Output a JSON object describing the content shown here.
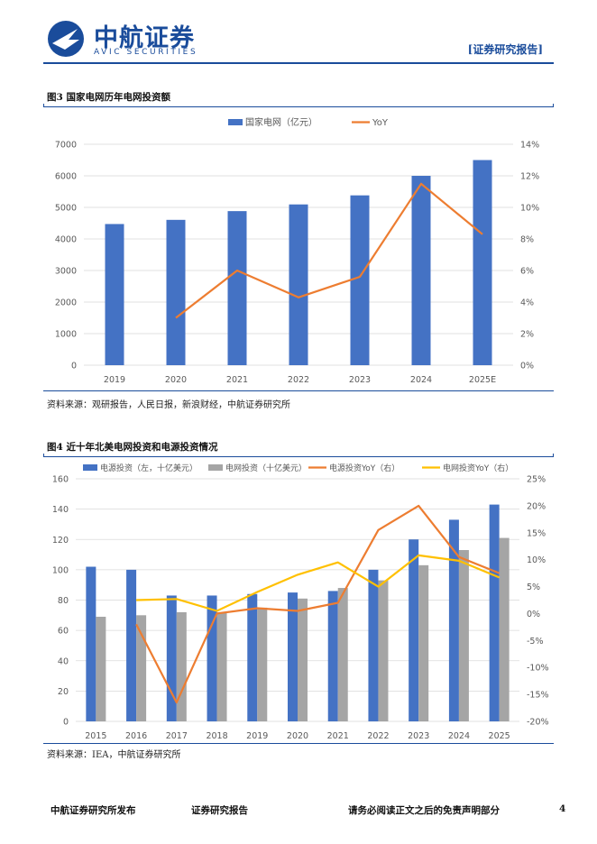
{
  "header": {
    "brand_cn": "中航证券",
    "brand_en": "AVIC  SECURITIES",
    "logo_text": "AVIC",
    "report_tag": "[证券研究报告]"
  },
  "figure3": {
    "title": "图3 国家电网历年电网投资额",
    "source": "资料来源：观研报告，人民日报，新浪财经，中航证券研究所"
  },
  "figure4": {
    "title": "图4 近十年北美电网投资和电源投资情况",
    "source": "资料来源：IEA，中航证券研究所"
  },
  "chart_data": [
    {
      "type": "bar",
      "title": "国家电网历年电网投资额",
      "categories": [
        "2019",
        "2020",
        "2021",
        "2022",
        "2023",
        "2024",
        "2025E"
      ],
      "series": [
        {
          "name": "国家电网（亿元）",
          "kind": "bar",
          "axis": "left",
          "color": "#4472c4",
          "values": [
            4473,
            4605,
            4882,
            5094,
            5381,
            6000,
            6500
          ]
        },
        {
          "name": "YoY",
          "kind": "line",
          "axis": "right",
          "color": "#ed7d31",
          "values": [
            null,
            3.0,
            6.0,
            4.3,
            5.6,
            11.5,
            8.3
          ]
        }
      ],
      "ylim_left": [
        0,
        7000
      ],
      "yticks_left": [
        "0",
        "1000",
        "2000",
        "3000",
        "4000",
        "5000",
        "6000",
        "7000"
      ],
      "ylim_right": [
        0,
        14
      ],
      "yticks_right": [
        "0%",
        "2%",
        "4%",
        "6%",
        "8%",
        "10%",
        "12%",
        "14%"
      ],
      "legend_position": "top-center",
      "grid": true
    },
    {
      "type": "bar",
      "title": "近十年北美电网投资和电源投资情况",
      "categories": [
        "2015",
        "2016",
        "2017",
        "2018",
        "2019",
        "2020",
        "2021",
        "2022",
        "2023",
        "2024",
        "2025"
      ],
      "series": [
        {
          "name": "电源投资（左，十亿美元）",
          "kind": "bar",
          "axis": "left",
          "color": "#4472c4",
          "values": [
            102,
            100,
            83,
            83,
            84,
            85,
            86,
            100,
            120,
            133,
            143
          ]
        },
        {
          "name": "电网投资（十亿美元）",
          "kind": "bar",
          "axis": "left",
          "color": "#a5a5a5",
          "values": [
            69,
            70,
            72,
            72,
            75,
            81,
            88,
            93,
            103,
            113,
            121
          ]
        },
        {
          "name": "电源投资YoY（右）",
          "kind": "line",
          "axis": "right",
          "color": "#ed7d31",
          "values": [
            null,
            -2,
            -16.5,
            0,
            1,
            0.5,
            2,
            15.5,
            20,
            10.5,
            7.5
          ]
        },
        {
          "name": "电网投资YoY（右）",
          "kind": "line",
          "axis": "right",
          "color": "#ffc000",
          "values": [
            null,
            2.5,
            2.7,
            0.5,
            4,
            7.2,
            9.5,
            5,
            10.8,
            9.8,
            6.7
          ]
        }
      ],
      "ylim_left": [
        0,
        160
      ],
      "yticks_left": [
        "0",
        "20",
        "40",
        "60",
        "80",
        "100",
        "120",
        "140",
        "160"
      ],
      "ylim_right": [
        -20,
        25
      ],
      "yticks_right": [
        "-20%",
        "-15%",
        "-10%",
        "-5%",
        "0%",
        "5%",
        "10%",
        "15%",
        "20%",
        "25%"
      ],
      "legend_position": "top",
      "grid": true
    }
  ],
  "footer": {
    "left": "中航证券研究所发布",
    "middle": "证券研究报告",
    "right": "请务必阅读正文之后的免责声明部分",
    "page": "4"
  }
}
